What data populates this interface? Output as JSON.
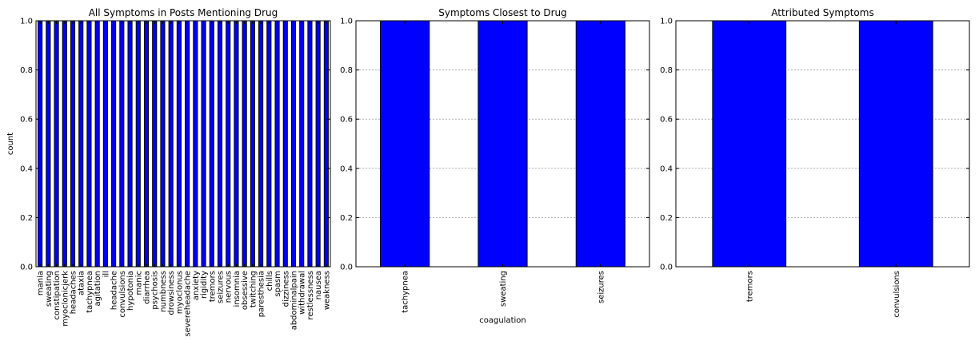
{
  "chart_data": [
    {
      "type": "bar",
      "title": "All Symptoms in Posts Mentioning Drug",
      "xlabel": "",
      "ylabel": "count",
      "ylim": [
        0,
        1.0
      ],
      "yticks": [
        "0.0",
        "0.2",
        "0.4",
        "0.6",
        "0.8",
        "1.0"
      ],
      "grid": false,
      "bar_color": "#0000ff",
      "categories": [
        "mania",
        "sweating",
        "constipation",
        "myoclonicjerk",
        "headaches",
        "ataxia",
        "tachypnea",
        "agitation",
        "ill",
        "headache",
        "convulsions",
        "hypotonia",
        "manic",
        "diarrhea",
        "psychosis",
        "numbness",
        "drowsiness",
        "myoclonus",
        "severeheadache",
        "anxiety",
        "rigidity",
        "tremors",
        "seizures",
        "nervous",
        "insomnia",
        "obsessive",
        "twitching",
        "paresthesia",
        "chills",
        "spasm",
        "dizziness",
        "abdominalpain",
        "withdrawal",
        "restlessness",
        "nausea",
        "weakness"
      ],
      "values": [
        1,
        1,
        1,
        1,
        1,
        1,
        1,
        1,
        1,
        1,
        1,
        1,
        1,
        1,
        1,
        1,
        1,
        1,
        1,
        1,
        1,
        1,
        1,
        1,
        1,
        1,
        1,
        1,
        1,
        1,
        1,
        1,
        1,
        1,
        1,
        1
      ]
    },
    {
      "type": "bar",
      "title": "Symptoms Closest to Drug",
      "xlabel": "coagulation",
      "ylabel": "",
      "ylim": [
        0,
        1.0
      ],
      "yticks": [
        "0.0",
        "0.2",
        "0.4",
        "0.6",
        "0.8",
        "1.0"
      ],
      "grid": true,
      "bar_color": "#0000ff",
      "categories": [
        "tachypnea",
        "sweating",
        "seizures"
      ],
      "values": [
        1,
        1,
        1
      ]
    },
    {
      "type": "bar",
      "title": "Attributed Symptoms",
      "xlabel": "",
      "ylabel": "",
      "ylim": [
        0,
        1.0
      ],
      "yticks": [
        "0.0",
        "0.2",
        "0.4",
        "0.6",
        "0.8",
        "1.0"
      ],
      "grid": true,
      "bar_color": "#0000ff",
      "categories": [
        "tremors",
        "convulsions"
      ],
      "values": [
        1,
        1
      ]
    }
  ]
}
